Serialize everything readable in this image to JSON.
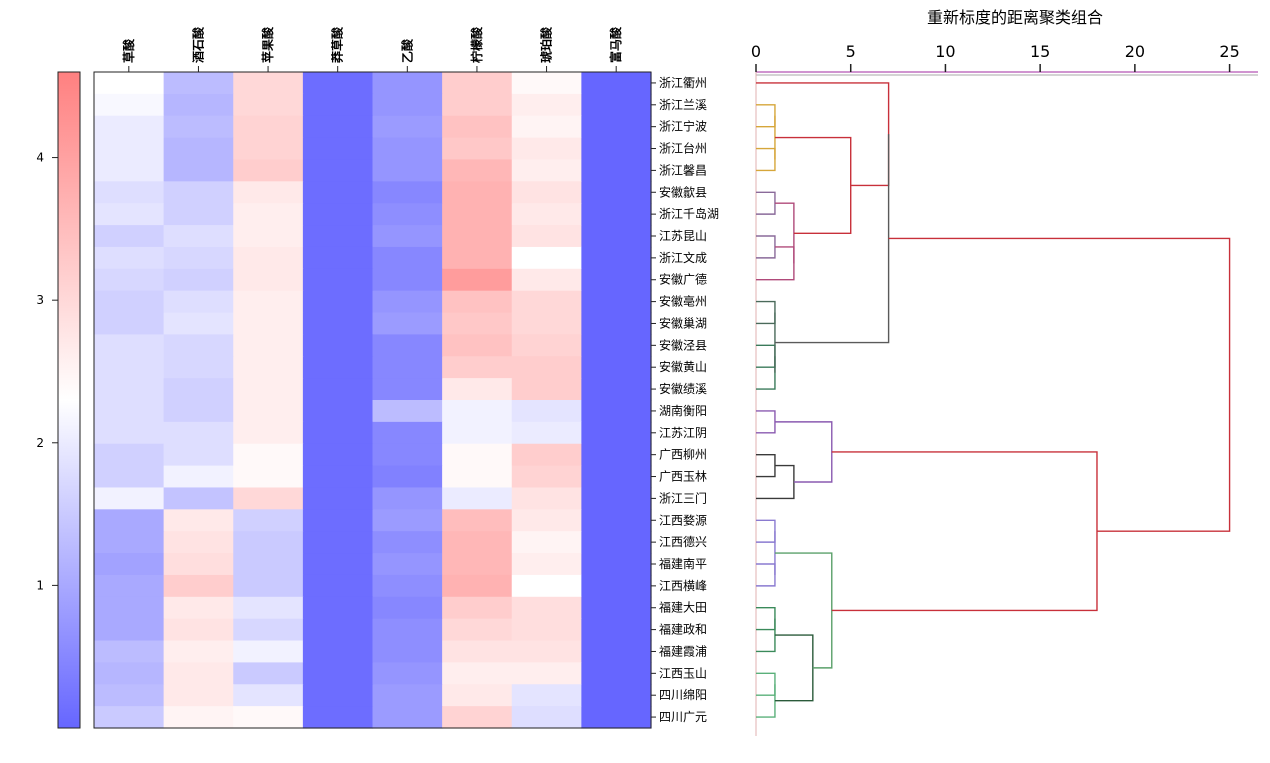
{
  "chart_data": [
    {
      "type": "heatmap",
      "columns": [
        "草酸",
        "酒石酸",
        "苹果酸",
        "莽草酸",
        "乙酸",
        "柠檬酸",
        "琥珀酸",
        "富马酸"
      ],
      "rows": [
        "浙江衢州",
        "浙江兰溪",
        "浙江宁波",
        "浙江台州",
        "浙江馨昌",
        "安徽歙县",
        "浙江千岛湖",
        "江苏昆山",
        "浙江文成",
        "安徽广德",
        "安徽亳州",
        "安徽巢湖",
        "安徽泾县",
        "安徽黄山",
        "安徽绩溪",
        "湖南衡阳",
        "江苏江阴",
        "广西柳州",
        "广西玉林",
        "浙江三门",
        "江西婺源",
        "江西德兴",
        "福建南平",
        "江西横峰",
        "福建大田",
        "福建政和",
        "福建霞浦",
        "江西玉山",
        "四川绵阳",
        "四川广元"
      ],
      "values": [
        [
          2.3,
          1.3,
          3.0,
          0.1,
          0.7,
          3.2,
          2.4,
          0.0
        ],
        [
          2.2,
          1.2,
          3.0,
          0.1,
          0.7,
          3.2,
          2.6,
          0.0
        ],
        [
          2.0,
          1.3,
          3.1,
          0.1,
          0.8,
          3.4,
          2.5,
          0.0
        ],
        [
          2.0,
          1.2,
          3.1,
          0.1,
          0.7,
          3.3,
          2.7,
          0.0
        ],
        [
          2.0,
          1.2,
          3.2,
          0.1,
          0.7,
          3.6,
          2.6,
          0.0
        ],
        [
          1.8,
          1.6,
          2.7,
          0.1,
          0.5,
          3.7,
          2.8,
          0.0
        ],
        [
          1.9,
          1.6,
          2.6,
          0.1,
          0.6,
          3.7,
          2.7,
          0.0
        ],
        [
          1.6,
          1.8,
          2.6,
          0.1,
          0.7,
          3.7,
          2.8,
          0.0
        ],
        [
          1.8,
          1.7,
          2.7,
          0.1,
          0.5,
          3.7,
          2.3,
          0.0
        ],
        [
          1.7,
          1.6,
          2.7,
          0.1,
          0.5,
          4.1,
          2.7,
          0.0
        ],
        [
          1.6,
          1.8,
          2.6,
          0.1,
          0.7,
          3.4,
          3.0,
          0.0
        ],
        [
          1.6,
          1.9,
          2.6,
          0.1,
          0.8,
          3.3,
          3.0,
          0.0
        ],
        [
          1.8,
          1.7,
          2.6,
          0.1,
          0.5,
          3.4,
          3.1,
          0.0
        ],
        [
          1.8,
          1.7,
          2.6,
          0.1,
          0.5,
          3.2,
          3.2,
          0.0
        ],
        [
          1.8,
          1.6,
          2.6,
          0.1,
          0.5,
          2.7,
          3.2,
          0.0
        ],
        [
          1.8,
          1.6,
          2.6,
          0.1,
          1.3,
          2.1,
          1.9,
          0.0
        ],
        [
          1.8,
          1.8,
          2.6,
          0.1,
          0.5,
          2.1,
          2.0,
          0.0
        ],
        [
          1.6,
          1.8,
          2.4,
          0.1,
          0.5,
          2.4,
          3.2,
          0.0
        ],
        [
          1.6,
          2.1,
          2.4,
          0.1,
          0.4,
          2.4,
          3.1,
          0.0
        ],
        [
          2.1,
          1.4,
          3.0,
          0.1,
          0.7,
          2.0,
          2.8,
          0.0
        ],
        [
          1.0,
          2.7,
          1.6,
          0.1,
          0.8,
          3.5,
          2.7,
          0.0
        ],
        [
          1.0,
          2.8,
          1.5,
          0.1,
          0.6,
          3.6,
          2.5,
          0.0
        ],
        [
          0.9,
          2.9,
          1.5,
          0.1,
          0.7,
          3.6,
          2.6,
          0.0
        ],
        [
          1.0,
          3.2,
          1.5,
          0.1,
          0.6,
          3.7,
          2.3,
          0.0
        ],
        [
          1.0,
          2.7,
          1.9,
          0.1,
          0.5,
          3.2,
          2.9,
          0.0
        ],
        [
          1.0,
          2.8,
          1.7,
          0.1,
          0.6,
          3.0,
          2.9,
          0.0
        ],
        [
          1.3,
          2.6,
          2.1,
          0.1,
          0.6,
          2.8,
          2.8,
          0.0
        ],
        [
          1.2,
          2.7,
          1.5,
          0.1,
          0.7,
          2.6,
          2.6,
          0.0
        ],
        [
          1.3,
          2.7,
          1.9,
          0.1,
          0.8,
          2.7,
          1.9,
          0.0
        ],
        [
          1.5,
          2.5,
          2.4,
          0.1,
          0.8,
          3.1,
          1.8,
          0.0
        ]
      ],
      "colorbar": {
        "ticks": [
          "1",
          "2",
          "3",
          "4"
        ],
        "min": 0.0,
        "max": 4.6,
        "colors": [
          "#6666ff",
          "#ffffff",
          "#ff8080"
        ]
      }
    },
    {
      "type": "dendrogram",
      "title": "重新标度的距离聚类组合",
      "axis_ticks": [
        0,
        5,
        10,
        15,
        20,
        25
      ],
      "xlim": [
        0,
        26.5
      ],
      "merges": [
        {
          "a": "浙江兰溪",
          "b": "浙江宁波",
          "h": 1.0,
          "color": "#d6a63a"
        },
        {
          "a": "浙江台州",
          "b": "浙江馨昌",
          "h": 1.0,
          "color": "#d6a63a"
        },
        {
          "a": "M0",
          "b": "M1",
          "h": 1.0,
          "color": "#d6a63a"
        },
        {
          "a": "安徽歙县",
          "b": "浙江千岛湖",
          "h": 1.0,
          "color": "#8a6a9a"
        },
        {
          "a": "江苏昆山",
          "b": "浙江文成",
          "h": 1.0,
          "color": "#8a6a9a"
        },
        {
          "a": "M4",
          "b": "安徽广德",
          "h": 2.0,
          "color": "#b04a7a"
        },
        {
          "a": "M3",
          "b": "M5",
          "h": 2.0,
          "color": "#b04a7a"
        },
        {
          "a": "M2",
          "b": "M6",
          "h": 5.0,
          "color": "#c8303a"
        },
        {
          "a": "浙江衢州",
          "b": "M7",
          "h": 7.0,
          "color": "#c8303a"
        },
        {
          "a": "安徽亳州",
          "b": "安徽巢湖",
          "h": 1.0,
          "color": "#4a6a5a"
        },
        {
          "a": "安徽泾县",
          "b": "安徽黄山",
          "h": 1.0,
          "color": "#3a7a5a"
        },
        {
          "a": "M10",
          "b": "安徽绩溪",
          "h": 1.0,
          "color": "#3a7a5a"
        },
        {
          "a": "M9",
          "b": "M11",
          "h": 1.0,
          "color": "#4a6a5a"
        },
        {
          "a": "M8",
          "b": "M12",
          "h": 7.0,
          "color": "#5a5a5a"
        },
        {
          "a": "湖南衡阳",
          "b": "江苏江阴",
          "h": 1.0,
          "color": "#8a5ab0"
        },
        {
          "a": "广西柳州",
          "b": "广西玉林",
          "h": 1.0,
          "color": "#3a3a3a"
        },
        {
          "a": "M15",
          "b": "浙江三门",
          "h": 2.0,
          "color": "#3a3a3a"
        },
        {
          "a": "M14",
          "b": "M16",
          "h": 4.0,
          "color": "#8a5ab0"
        },
        {
          "a": "江西婺源",
          "b": "江西德兴",
          "h": 1.0,
          "color": "#8a7ad0"
        },
        {
          "a": "福建南平",
          "b": "江西横峰",
          "h": 1.0,
          "color": "#8a7ad0"
        },
        {
          "a": "M18",
          "b": "M19",
          "h": 1.0,
          "color": "#8a7ad0"
        },
        {
          "a": "福建大田",
          "b": "福建政和",
          "h": 1.0,
          "color": "#3a8a5a"
        },
        {
          "a": "M21",
          "b": "福建霞浦",
          "h": 1.0,
          "color": "#3a8a5a"
        },
        {
          "a": "江西玉山",
          "b": "四川绵阳",
          "h": 1.0,
          "color": "#5ab07a"
        },
        {
          "a": "M23",
          "b": "四川广元",
          "h": 1.0,
          "color": "#5ab07a"
        },
        {
          "a": "M22",
          "b": "M24",
          "h": 3.0,
          "color": "#2a5a3a"
        },
        {
          "a": "M20",
          "b": "M25",
          "h": 4.0,
          "color": "#5aa06a"
        },
        {
          "a": "M17",
          "b": "M26",
          "h": 18.0,
          "color": "#c8303a"
        },
        {
          "a": "M13",
          "b": "M27",
          "h": 25.0,
          "color": "#c8303a"
        }
      ]
    }
  ]
}
